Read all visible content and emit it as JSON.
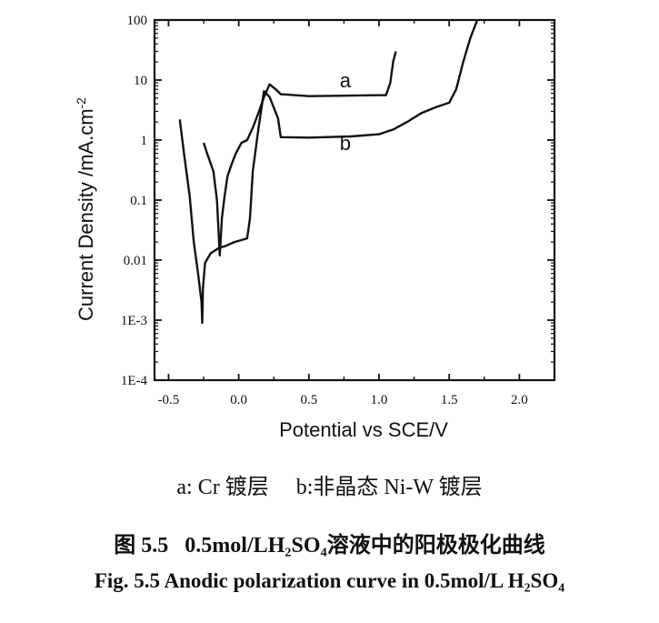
{
  "chart_data": {
    "type": "line",
    "y_scale": "log",
    "xlim": [
      -0.6,
      2.25
    ],
    "ylim": [
      0.0001,
      100
    ],
    "x_ticks": [
      -0.5,
      0.0,
      0.5,
      1.0,
      1.5,
      2.0
    ],
    "x_tick_labels": [
      "-0.5",
      "0.0",
      "0.5",
      "1.0",
      "1.5",
      "2.0"
    ],
    "y_ticks": [
      0.0001,
      0.001,
      0.01,
      0.1,
      1,
      10,
      100
    ],
    "y_tick_labels": [
      "1E-4",
      "1E-3",
      "0.01",
      "0.1",
      "1",
      "10",
      "100"
    ],
    "xlabel": "Potential vs SCE/V",
    "ylabel": "Current Density /mA.cm",
    "ylabel_superscript": "-2",
    "grid": false,
    "series": [
      {
        "name": "a",
        "label_at": [
          0.72,
          10
        ],
        "points": [
          [
            -0.25,
            0.9
          ],
          [
            -0.22,
            0.55
          ],
          [
            -0.18,
            0.3
          ],
          [
            -0.155,
            0.1
          ],
          [
            -0.14,
            0.02
          ],
          [
            -0.135,
            0.012
          ],
          [
            -0.12,
            0.05
          ],
          [
            -0.1,
            0.12
          ],
          [
            -0.08,
            0.25
          ],
          [
            -0.05,
            0.4
          ],
          [
            -0.02,
            0.6
          ],
          [
            0.02,
            0.9
          ],
          [
            0.06,
            1.0
          ],
          [
            0.1,
            1.6
          ],
          [
            0.14,
            2.8
          ],
          [
            0.18,
            5.2
          ],
          [
            0.22,
            8.5
          ],
          [
            0.27,
            6.8
          ],
          [
            0.3,
            5.8
          ],
          [
            0.5,
            5.4
          ],
          [
            0.8,
            5.5
          ],
          [
            1.05,
            5.6
          ],
          [
            1.08,
            9
          ],
          [
            1.1,
            20
          ],
          [
            1.12,
            30
          ]
        ]
      },
      {
        "name": "b",
        "label_at": [
          0.72,
          0.9
        ],
        "points": [
          [
            -0.42,
            2.2
          ],
          [
            -0.39,
            0.6
          ],
          [
            -0.35,
            0.12
          ],
          [
            -0.32,
            0.02
          ],
          [
            -0.29,
            0.006
          ],
          [
            -0.265,
            0.002
          ],
          [
            -0.26,
            0.0009
          ],
          [
            -0.255,
            0.0035
          ],
          [
            -0.24,
            0.009
          ],
          [
            -0.2,
            0.013
          ],
          [
            -0.14,
            0.016
          ],
          [
            -0.1,
            0.017
          ],
          [
            -0.03,
            0.02
          ],
          [
            0.06,
            0.023
          ],
          [
            0.08,
            0.05
          ],
          [
            0.1,
            0.3
          ],
          [
            0.14,
            1.5
          ],
          [
            0.18,
            6.5
          ],
          [
            0.22,
            5.2
          ],
          [
            0.28,
            2.3
          ],
          [
            0.3,
            1.12
          ],
          [
            0.5,
            1.1
          ],
          [
            0.8,
            1.15
          ],
          [
            1.0,
            1.25
          ],
          [
            1.1,
            1.5
          ],
          [
            1.2,
            2.0
          ],
          [
            1.3,
            2.8
          ],
          [
            1.4,
            3.5
          ],
          [
            1.5,
            4.2
          ],
          [
            1.55,
            7
          ],
          [
            1.6,
            20
          ],
          [
            1.65,
            50
          ],
          [
            1.7,
            100
          ]
        ]
      }
    ]
  },
  "captions": {
    "legend": "a: Cr 镀层     b:非晶态 Ni-W 镀层",
    "figure_cn": "图 5.5   0.5mol/LH₂SO₄溶液中的阳极极化曲线",
    "figure_en": "Fig. 5.5 Anodic polarization curve in 0.5mol/L H₂SO₄"
  }
}
